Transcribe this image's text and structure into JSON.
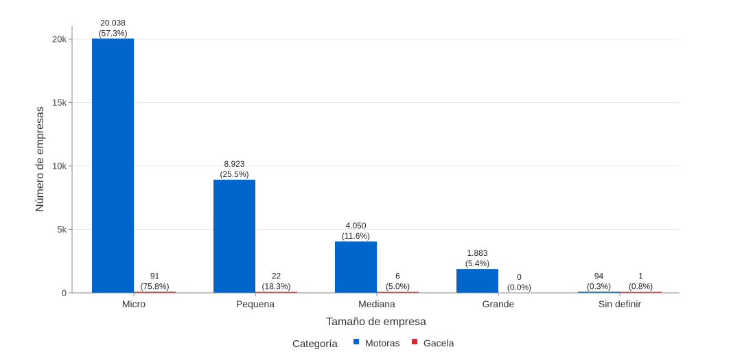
{
  "chart_data": {
    "type": "bar",
    "title": "",
    "xlabel": "Tamaño de empresa",
    "ylabel": "Número de empresas",
    "categories": [
      "Micro",
      "Pequena",
      "Mediana",
      "Grande",
      "Sin definir"
    ],
    "series": [
      {
        "name": "Motoras",
        "color": "#0066CC",
        "values": [
          20038,
          8923,
          4050,
          1883,
          94
        ],
        "value_labels": [
          "20.038",
          "8.923",
          "4.050",
          "1.883",
          "94"
        ],
        "pct_labels": [
          "(57.3%)",
          "(25.5%)",
          "(11.6%)",
          "(5.4%)",
          "(0.3%)"
        ]
      },
      {
        "name": "Gacela",
        "color": "#E0262B",
        "values": [
          91,
          22,
          6,
          0,
          1
        ],
        "value_labels": [
          "91",
          "22",
          "6",
          "0",
          "1"
        ],
        "pct_labels": [
          "(75.8%)",
          "(18.3%)",
          "(5.0%)",
          "(0.0%)",
          "(0.8%)"
        ]
      }
    ],
    "yticks": [
      0,
      5000,
      10000,
      15000,
      20000
    ],
    "ytick_labels": [
      "0",
      "5k",
      "10k",
      "15k",
      "20k"
    ],
    "ylim": [
      0,
      21000
    ],
    "grid": "horizontal",
    "legend": {
      "title": "Categoría",
      "position": "bottom",
      "entries": [
        "Motoras",
        "Gacela"
      ]
    }
  }
}
